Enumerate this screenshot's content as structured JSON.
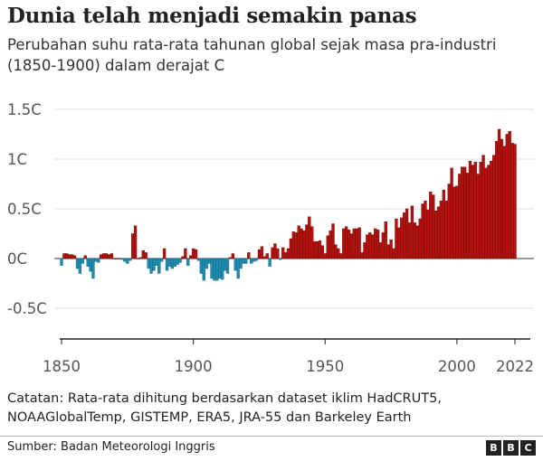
{
  "header": {
    "title": "Dunia telah menjadi semakin panas",
    "subtitle": "Perubahan suhu rata-rata tahunan global sejak masa pra-industri (1850-1900) dalam derajat C"
  },
  "chart_data": {
    "type": "bar",
    "title": "Dunia telah menjadi semakin panas",
    "xlabel": "",
    "ylabel": "",
    "ylim": [
      -0.75,
      1.5
    ],
    "xlim": [
      1850,
      2022
    ],
    "grid": true,
    "y_ticks": [
      {
        "value": 1.5,
        "label": "1.5C"
      },
      {
        "value": 1,
        "label": "1C"
      },
      {
        "value": 0.5,
        "label": "0.5C"
      },
      {
        "value": 0,
        "label": "0C"
      },
      {
        "value": -0.5,
        "label": "-0.5C"
      }
    ],
    "x_ticks": [
      {
        "value": 1850,
        "label": "1850"
      },
      {
        "value": 1900,
        "label": "1900"
      },
      {
        "value": 1950,
        "label": "1950"
      },
      {
        "value": 2000,
        "label": "2000"
      },
      {
        "value": 2022,
        "label": "2022"
      }
    ],
    "colors": {
      "positive": "#b5120e",
      "negative": "#1e8bb0"
    },
    "start_year": 1850,
    "values": [
      -0.07,
      0.05,
      0.05,
      0.04,
      0.04,
      0.03,
      -0.1,
      -0.15,
      -0.05,
      0.03,
      -0.08,
      -0.13,
      -0.2,
      -0.03,
      -0.04,
      0.04,
      0.05,
      0.05,
      0.04,
      0.05,
      0.0,
      0.0,
      0.0,
      -0.01,
      -0.03,
      -0.05,
      -0.02,
      0.25,
      0.33,
      0.0,
      0.01,
      0.08,
      0.06,
      -0.1,
      -0.15,
      -0.12,
      -0.07,
      -0.15,
      -0.03,
      0.1,
      -0.12,
      -0.08,
      -0.1,
      -0.08,
      -0.06,
      -0.04,
      0.02,
      0.1,
      -0.07,
      0.03,
      0.1,
      0.09,
      -0.02,
      -0.15,
      -0.22,
      -0.1,
      -0.05,
      -0.2,
      -0.22,
      -0.22,
      -0.2,
      -0.21,
      -0.12,
      -0.15,
      0.01,
      0.05,
      -0.12,
      -0.2,
      -0.1,
      -0.05,
      -0.05,
      0.06,
      -0.05,
      -0.03,
      -0.02,
      0.09,
      0.12,
      0.02,
      0.05,
      -0.08,
      0.11,
      0.15,
      0.1,
      -0.01,
      0.11,
      0.06,
      0.1,
      0.2,
      0.27,
      0.26,
      0.33,
      0.3,
      0.28,
      0.34,
      0.42,
      0.32,
      0.17,
      0.17,
      0.18,
      0.13,
      0.05,
      0.23,
      0.28,
      0.35,
      0.14,
      0.1,
      0.05,
      0.3,
      0.32,
      0.29,
      0.25,
      0.3,
      0.3,
      0.31,
      0.06,
      0.16,
      0.24,
      0.26,
      0.24,
      0.3,
      0.29,
      0.16,
      0.26,
      0.37,
      0.14,
      0.19,
      0.1,
      0.4,
      0.31,
      0.41,
      0.46,
      0.5,
      0.36,
      0.53,
      0.36,
      0.33,
      0.4,
      0.55,
      0.58,
      0.49,
      0.67,
      0.64,
      0.48,
      0.52,
      0.58,
      0.69,
      0.58,
      0.75,
      0.91,
      0.72,
      0.73,
      0.85,
      0.92,
      0.92,
      0.86,
      0.98,
      0.94,
      0.97,
      0.85,
      0.97,
      1.04,
      0.91,
      0.94,
      0.98,
      1.04,
      1.18,
      1.3,
      1.2,
      1.13,
      1.25,
      1.28,
      1.16,
      1.15
    ]
  },
  "footer": {
    "note": "Catatan: Rata-rata dihitung berdasarkan dataset iklim HadCRUT5, NOAAGlobalTemp, GISTEMP, ERA5, JRA-55 dan Barkeley Earth",
    "source": "Sumber: Badan Meteorologi Inggris",
    "logo": "BBC"
  }
}
